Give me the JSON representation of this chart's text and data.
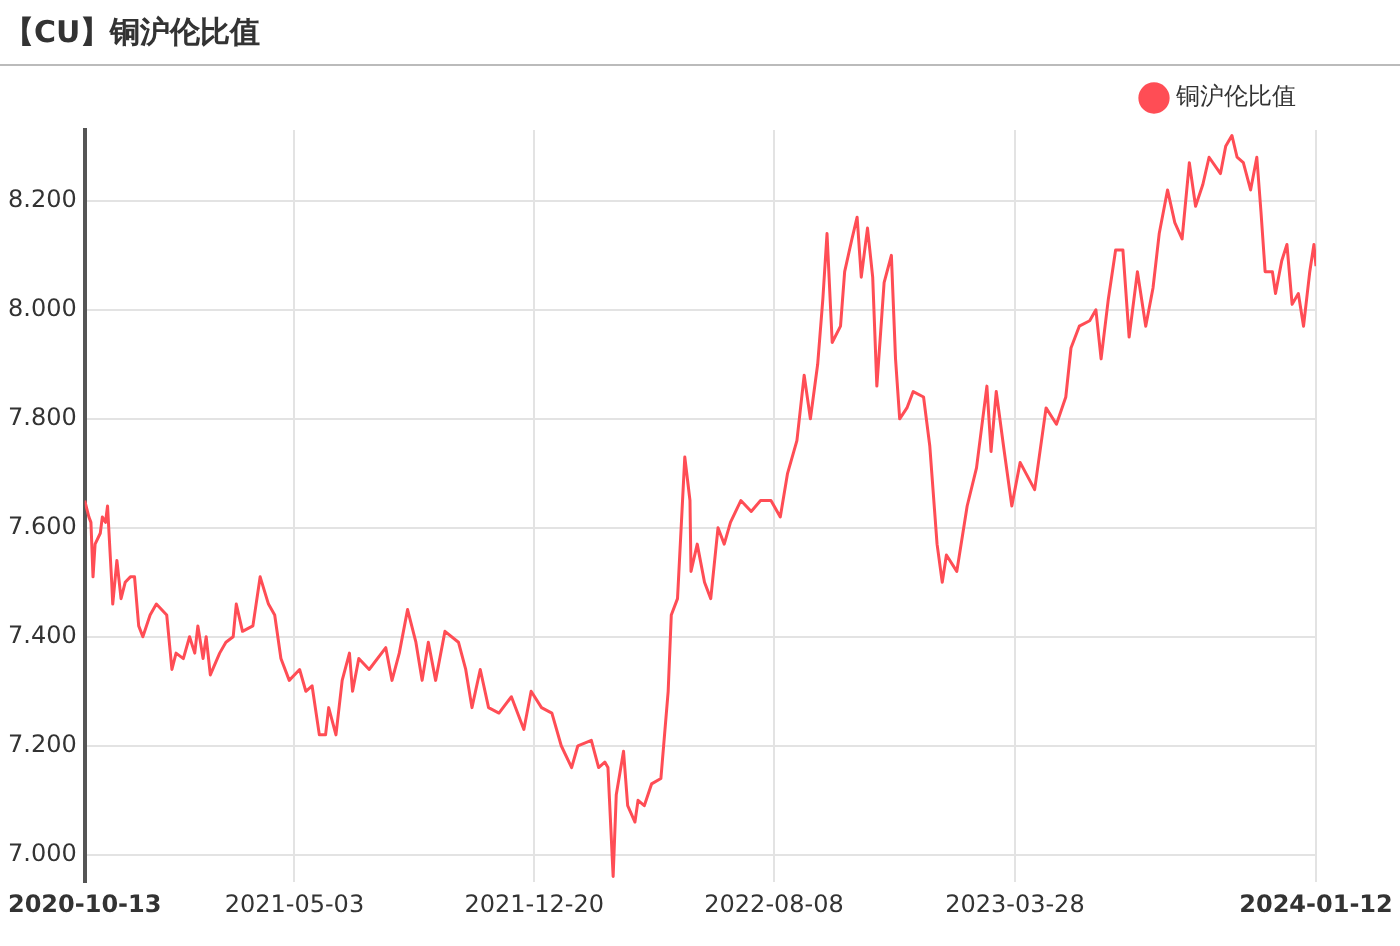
{
  "chart_data": {
    "type": "line",
    "title": "【CU】铜沪伦比值",
    "x": [
      "2020-10-13",
      "2020-10-17",
      "2020-10-19",
      "2020-10-21",
      "2020-10-23",
      "2020-10-28",
      "2020-10-30",
      "2020-11-02",
      "2020-11-04",
      "2020-11-08",
      "2020-11-09",
      "2020-11-13",
      "2020-11-17",
      "2020-11-21",
      "2020-11-26",
      "2020-11-30",
      "2020-12-04",
      "2020-12-08",
      "2020-12-15",
      "2020-12-21",
      "2020-12-31",
      "2021-01-05",
      "2021-01-09",
      "2021-01-16",
      "2021-01-22",
      "2021-01-27",
      "2021-01-30",
      "2021-02-04",
      "2021-02-07",
      "2021-02-11",
      "2021-02-20",
      "2021-02-26",
      "2021-03-05",
      "2021-03-08",
      "2021-03-14",
      "2021-03-24",
      "2021-03-31",
      "2021-04-08",
      "2021-04-14",
      "2021-04-20",
      "2021-04-28",
      "2021-05-08",
      "2021-05-14",
      "2021-05-20",
      "2021-05-27",
      "2021-06-02",
      "2021-06-05",
      "2021-06-12",
      "2021-06-18",
      "2021-06-25",
      "2021-06-28",
      "2021-07-04",
      "2021-07-14",
      "2021-07-30",
      "2021-08-05",
      "2021-08-12",
      "2021-08-20",
      "2021-08-28",
      "2021-09-03",
      "2021-09-09",
      "2021-09-16",
      "2021-09-25",
      "2021-10-08",
      "2021-10-15",
      "2021-10-21",
      "2021-10-29",
      "2021-11-06",
      "2021-11-16",
      "2021-11-28",
      "2021-12-10",
      "2021-12-17",
      "2021-12-27",
      "2022-01-06",
      "2022-01-15",
      "2022-01-25",
      "2022-01-31",
      "2022-02-13",
      "2022-02-20",
      "2022-02-26",
      "2022-03-01",
      "2022-03-06",
      "2022-03-09",
      "2022-03-16",
      "2022-03-20",
      "2022-03-27",
      "2022-03-30",
      "2022-04-05",
      "2022-04-12",
      "2022-04-21",
      "2022-04-28",
      "2022-05-01",
      "2022-05-07",
      "2022-05-14",
      "2022-05-19",
      "2022-05-20",
      "2022-05-26",
      "2022-06-02",
      "2022-06-08",
      "2022-06-15",
      "2022-06-21",
      "2022-06-27",
      "2022-07-07",
      "2022-07-17",
      "2022-07-26",
      "2022-08-05",
      "2022-08-14",
      "2022-08-21",
      "2022-08-30",
      "2022-09-06",
      "2022-09-12",
      "2022-09-19",
      "2022-09-24",
      "2022-09-28",
      "2022-10-03",
      "2022-10-11",
      "2022-10-15",
      "2022-10-22",
      "2022-10-27",
      "2022-10-31",
      "2022-11-06",
      "2022-11-11",
      "2022-11-15",
      "2022-11-22",
      "2022-11-29",
      "2022-12-03",
      "2022-12-07",
      "2022-12-14",
      "2022-12-20",
      "2022-12-30",
      "2023-01-05",
      "2023-01-12",
      "2023-01-17",
      "2023-01-21",
      "2023-01-31",
      "2023-02-10",
      "2023-02-19",
      "2023-03-01",
      "2023-03-05",
      "2023-03-10",
      "2023-03-17",
      "2023-03-25",
      "2023-04-02",
      "2023-04-16",
      "2023-04-27",
      "2023-05-07",
      "2023-05-16",
      "2023-05-21",
      "2023-05-29",
      "2023-06-08",
      "2023-06-14",
      "2023-06-19",
      "2023-06-26",
      "2023-07-03",
      "2023-07-10",
      "2023-07-16",
      "2023-07-24",
      "2023-08-01",
      "2023-08-08",
      "2023-08-14",
      "2023-08-22",
      "2023-08-29",
      "2023-09-05",
      "2023-09-12",
      "2023-09-18",
      "2023-09-25",
      "2023-10-01",
      "2023-10-12",
      "2023-10-17",
      "2023-10-23",
      "2023-10-28",
      "2023-11-03",
      "2023-11-10",
      "2023-11-16",
      "2023-11-20",
      "2023-11-24",
      "2023-12-01",
      "2023-12-04",
      "2023-12-10",
      "2023-12-15",
      "2023-12-20",
      "2023-12-26",
      "2023-12-31",
      "2024-01-06",
      "2024-01-10",
      "2024-01-12"
    ],
    "series": [
      {
        "name": "铜沪伦比值",
        "color": "#ff4d55",
        "values": [
          7.65,
          7.62,
          7.61,
          7.51,
          7.57,
          7.59,
          7.62,
          7.61,
          7.64,
          7.5,
          7.46,
          7.54,
          7.47,
          7.5,
          7.51,
          7.51,
          7.42,
          7.4,
          7.44,
          7.46,
          7.44,
          7.34,
          7.37,
          7.36,
          7.4,
          7.37,
          7.42,
          7.36,
          7.4,
          7.33,
          7.37,
          7.39,
          7.4,
          7.46,
          7.41,
          7.42,
          7.51,
          7.46,
          7.44,
          7.36,
          7.32,
          7.34,
          7.3,
          7.31,
          7.22,
          7.22,
          7.27,
          7.22,
          7.32,
          7.37,
          7.3,
          7.36,
          7.34,
          7.38,
          7.32,
          7.37,
          7.45,
          7.39,
          7.32,
          7.39,
          7.32,
          7.41,
          7.39,
          7.34,
          7.27,
          7.34,
          7.27,
          7.26,
          7.29,
          7.23,
          7.3,
          7.27,
          7.26,
          7.2,
          7.16,
          7.2,
          7.21,
          7.16,
          7.17,
          7.16,
          6.96,
          7.11,
          7.19,
          7.09,
          7.06,
          7.1,
          7.09,
          7.13,
          7.14,
          7.3,
          7.44,
          7.47,
          7.73,
          7.65,
          7.52,
          7.57,
          7.5,
          7.47,
          7.6,
          7.57,
          7.61,
          7.65,
          7.63,
          7.65,
          7.65,
          7.62,
          7.7,
          7.76,
          7.88,
          7.8,
          7.9,
          8.02,
          8.14,
          7.94,
          7.97,
          8.07,
          8.13,
          8.17,
          8.06,
          8.15,
          8.06,
          7.86,
          8.05,
          8.1,
          7.91,
          7.8,
          7.82,
          7.85,
          7.84,
          7.75,
          7.57,
          7.5,
          7.55,
          7.52,
          7.64,
          7.71,
          7.86,
          7.74,
          7.85,
          7.75,
          7.64,
          7.72,
          7.67,
          7.82,
          7.79,
          7.84,
          7.93,
          7.97,
          7.98,
          8.0,
          7.91,
          8.02,
          8.11,
          8.11,
          7.95,
          8.07,
          7.97,
          8.04,
          8.14,
          8.22,
          8.16,
          8.13,
          8.27,
          8.19,
          8.23,
          8.28,
          8.25,
          8.3,
          8.32,
          8.28,
          8.27,
          8.22,
          8.28,
          8.18,
          8.07,
          8.07,
          8.03,
          8.09,
          8.12,
          8.01,
          8.03,
          7.97,
          8.07,
          8.12,
          8.08
        ]
      }
    ],
    "xlim": [
      "2020-10-13",
      "2024-01-12"
    ],
    "xticks": [
      "2020-10-13",
      "2021-05-03",
      "2021-12-20",
      "2022-08-08",
      "2023-03-28",
      "2024-01-12"
    ],
    "ylim": [
      6.95,
      8.33
    ],
    "yticks": [
      {
        "value": 7,
        "label": "7.000"
      },
      {
        "value": 7.2,
        "label": "7.200"
      },
      {
        "value": 7.4,
        "label": "7.400"
      },
      {
        "value": 7.6,
        "label": "7.600"
      },
      {
        "value": 7.8,
        "label": "7.800"
      },
      {
        "value": 8,
        "label": "8.000"
      },
      {
        "value": 8.2,
        "label": "8.200"
      }
    ],
    "grid": true,
    "legend": "top right",
    "marker": "none",
    "line_style": "solid"
  }
}
